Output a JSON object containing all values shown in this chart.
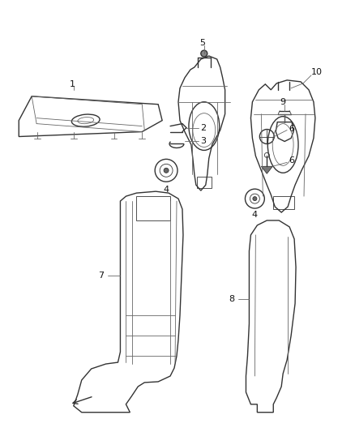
{
  "background_color": "#ffffff",
  "line_color": "#666666",
  "line_color_dark": "#333333",
  "fig_width": 4.38,
  "fig_height": 5.33
}
